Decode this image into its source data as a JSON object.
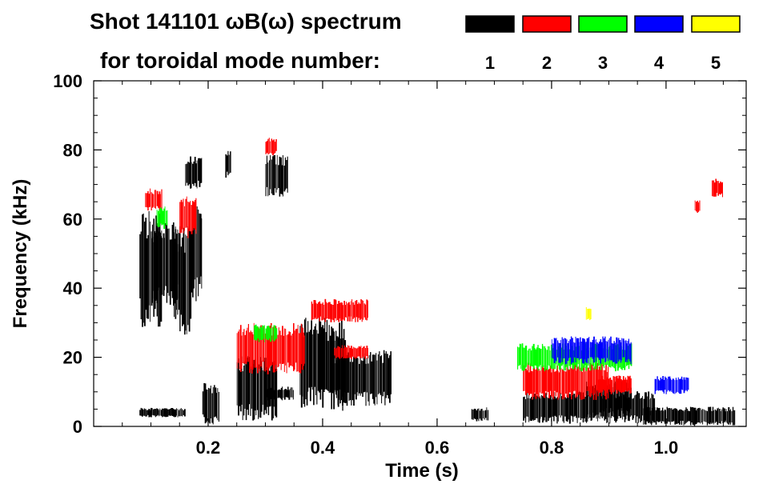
{
  "chart_data": {
    "type": "heatmap",
    "title": "Shot 141101 ωB(ω) spectrum",
    "legend_title": "for toroidal mode number:",
    "xlabel": "Time (s)",
    "ylabel": "Frequency (kHz)",
    "xlim": [
      0.0,
      1.14
    ],
    "ylim": [
      0,
      100
    ],
    "x_ticks": [
      0.2,
      0.4,
      0.6,
      0.8,
      1.0
    ],
    "x_tick_labels": [
      "0.2",
      "0.4",
      "0.6",
      "0.8",
      "1.0"
    ],
    "y_ticks": [
      0,
      20,
      40,
      60,
      80,
      100
    ],
    "y_tick_labels": [
      "0",
      "20",
      "40",
      "60",
      "80",
      "100"
    ],
    "legend": [
      {
        "label": "1",
        "color": "#000000"
      },
      {
        "label": "2",
        "color": "#ff0000"
      },
      {
        "label": "3",
        "color": "#00ff00"
      },
      {
        "label": "4",
        "color": "#0000ff"
      },
      {
        "label": "5",
        "color": "#ffff00"
      }
    ],
    "series": [
      {
        "name": "n=1",
        "mode": 1,
        "patches": [
          {
            "t0": 0.08,
            "t1": 0.12,
            "f0": 33,
            "f1": 58
          },
          {
            "t0": 0.1,
            "t1": 0.15,
            "f0": 38,
            "f1": 56
          },
          {
            "t0": 0.14,
            "t1": 0.17,
            "f0": 30,
            "f1": 54
          },
          {
            "t0": 0.16,
            "t1": 0.19,
            "f0": 70,
            "f1": 77
          },
          {
            "t0": 0.17,
            "t1": 0.19,
            "f0": 40,
            "f1": 62
          },
          {
            "t0": 0.08,
            "t1": 0.16,
            "f0": 3,
            "f1": 5
          },
          {
            "t0": 0.19,
            "t1": 0.22,
            "f0": 2,
            "f1": 11
          },
          {
            "t0": 0.23,
            "t1": 0.24,
            "f0": 73,
            "f1": 79
          },
          {
            "t0": 0.25,
            "t1": 0.32,
            "f0": 4,
            "f1": 18
          },
          {
            "t0": 0.3,
            "t1": 0.35,
            "f0": 8,
            "f1": 11
          },
          {
            "t0": 0.3,
            "t1": 0.34,
            "f0": 68,
            "f1": 77
          },
          {
            "t0": 0.36,
            "t1": 0.44,
            "f0": 8,
            "f1": 28
          },
          {
            "t0": 0.42,
            "t1": 0.52,
            "f0": 8,
            "f1": 20
          },
          {
            "t0": 0.66,
            "t1": 0.69,
            "f0": 2,
            "f1": 5
          },
          {
            "t0": 0.75,
            "t1": 0.98,
            "f0": 2,
            "f1": 9
          },
          {
            "t0": 0.86,
            "t1": 0.94,
            "f0": 4,
            "f1": 12
          },
          {
            "t0": 0.96,
            "t1": 1.12,
            "f0": 1,
            "f1": 5
          }
        ]
      },
      {
        "name": "n=2",
        "mode": 2,
        "patches": [
          {
            "t0": 0.09,
            "t1": 0.12,
            "f0": 63,
            "f1": 68
          },
          {
            "t0": 0.15,
            "t1": 0.18,
            "f0": 56,
            "f1": 65
          },
          {
            "t0": 0.25,
            "t1": 0.37,
            "f0": 17,
            "f1": 28
          },
          {
            "t0": 0.3,
            "t1": 0.32,
            "f0": 79,
            "f1": 83
          },
          {
            "t0": 0.38,
            "t1": 0.48,
            "f0": 31,
            "f1": 36
          },
          {
            "t0": 0.42,
            "t1": 0.48,
            "f0": 20,
            "f1": 23
          },
          {
            "t0": 0.75,
            "t1": 0.9,
            "f0": 9,
            "f1": 17
          },
          {
            "t0": 0.88,
            "t1": 0.94,
            "f0": 10,
            "f1": 14
          },
          {
            "t0": 1.05,
            "t1": 1.06,
            "f0": 62,
            "f1": 65
          },
          {
            "t0": 1.08,
            "t1": 1.1,
            "f0": 67,
            "f1": 71
          }
        ]
      },
      {
        "name": "n=3",
        "mode": 3,
        "patches": [
          {
            "t0": 0.11,
            "t1": 0.13,
            "f0": 58,
            "f1": 63
          },
          {
            "t0": 0.28,
            "t1": 0.32,
            "f0": 25,
            "f1": 29
          },
          {
            "t0": 0.74,
            "t1": 0.94,
            "f0": 17,
            "f1": 23
          }
        ]
      },
      {
        "name": "n=4",
        "mode": 4,
        "patches": [
          {
            "t0": 0.8,
            "t1": 0.94,
            "f0": 19,
            "f1": 25
          },
          {
            "t0": 0.98,
            "t1": 1.04,
            "f0": 10,
            "f1": 14
          }
        ]
      },
      {
        "name": "n=5",
        "mode": 5,
        "patches": [
          {
            "t0": 0.86,
            "t1": 0.87,
            "f0": 31,
            "f1": 34
          }
        ]
      }
    ]
  }
}
